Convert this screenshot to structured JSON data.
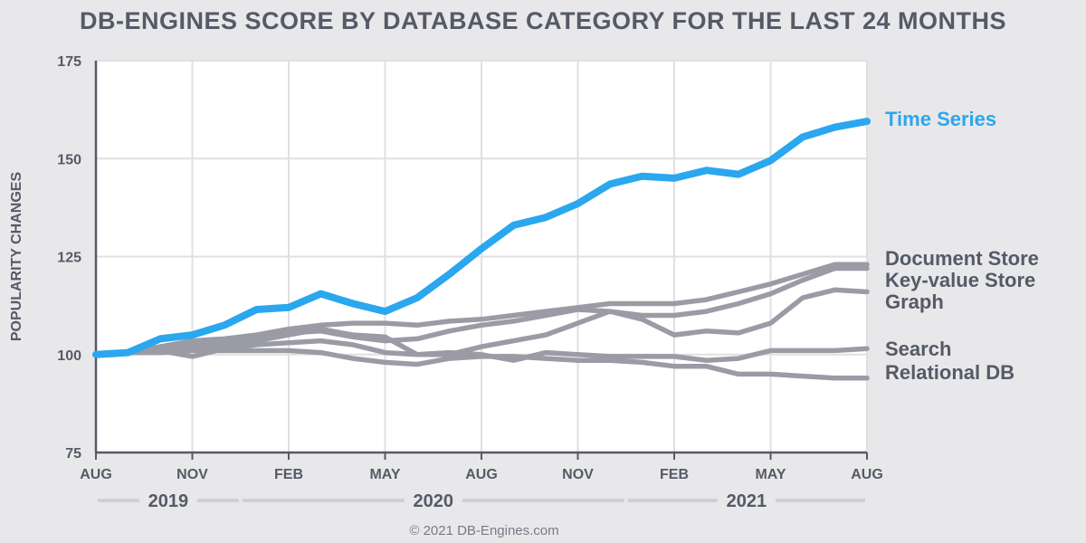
{
  "chart_data": {
    "type": "line",
    "title": "DB-ENGINES SCORE BY DATABASE CATEGORY FOR THE LAST 24 MONTHS",
    "ylabel": "POPULARITY CHANGES",
    "xlabel": "",
    "ylim": [
      75,
      175
    ],
    "yticks": [
      "75",
      "100",
      "125",
      "150",
      "175"
    ],
    "grid": true,
    "xlim": [
      0,
      24
    ],
    "xticks": [
      {
        "label": "AUG",
        "x": 0
      },
      {
        "label": "NOV",
        "x": 3
      },
      {
        "label": "FEB",
        "x": 6
      },
      {
        "label": "MAY",
        "x": 9
      },
      {
        "label": "AUG",
        "x": 12
      },
      {
        "label": "NOV",
        "x": 15
      },
      {
        "label": "FEB",
        "x": 18
      },
      {
        "label": "MAY",
        "x": 21
      },
      {
        "label": "AUG",
        "x": 24
      }
    ],
    "year_bands": [
      {
        "label": "2019",
        "start": 0,
        "end": 4.5
      },
      {
        "label": "2020",
        "start": 4.5,
        "end": 16.5
      },
      {
        "label": "2021",
        "start": 16.5,
        "end": 24
      }
    ],
    "x": [
      0,
      1,
      2,
      3,
      4,
      5,
      6,
      7,
      8,
      9,
      10,
      11,
      12,
      13,
      14,
      15,
      16,
      17,
      18,
      19,
      20,
      21,
      22,
      23,
      24
    ],
    "series": [
      {
        "name": "Document Store",
        "highlight": false,
        "values": [
          100,
          100.5,
          102,
          103.5,
          104,
          105,
          106.5,
          107.5,
          108,
          108,
          107.5,
          108.5,
          109,
          110,
          111,
          112,
          113,
          113,
          113,
          114,
          116,
          118,
          120.5,
          123,
          123
        ]
      },
      {
        "name": "Key-value Store",
        "highlight": false,
        "values": [
          100,
          100.5,
          101.5,
          102.5,
          103.5,
          104.5,
          105.5,
          106,
          104.5,
          103.5,
          104,
          106,
          107.5,
          108.5,
          110,
          111.5,
          111,
          110,
          110,
          111,
          113,
          115.5,
          119,
          122,
          122
        ]
      },
      {
        "name": "Graph",
        "highlight": false,
        "values": [
          100,
          100.5,
          101,
          101.5,
          102.5,
          103.5,
          105,
          106.5,
          105,
          104.5,
          100,
          100,
          102,
          103.5,
          105,
          108,
          111,
          109,
          105,
          106,
          105.5,
          108,
          114.5,
          116.5,
          116
        ]
      },
      {
        "name": "Search",
        "highlight": false,
        "values": [
          100,
          100.5,
          101,
          99.5,
          101.5,
          102.5,
          103,
          103.5,
          102.5,
          100.5,
          100,
          100.5,
          100,
          98.5,
          100.5,
          100,
          99.5,
          99.5,
          99.5,
          98.5,
          99,
          101,
          101,
          101,
          101.5
        ]
      },
      {
        "name": "Relational DB",
        "highlight": false,
        "values": [
          100,
          100.5,
          100.5,
          101,
          101,
          101,
          101,
          100.5,
          99,
          98,
          97.5,
          99,
          99.5,
          99.5,
          99,
          98.5,
          98.5,
          98,
          97,
          97,
          95,
          95,
          94.5,
          94,
          94
        ]
      },
      {
        "name": "Time Series",
        "highlight": true,
        "values": [
          100,
          100.5,
          104,
          105,
          107.5,
          111.5,
          112,
          115.5,
          113,
          111,
          114.5,
          120.5,
          127,
          133,
          135,
          138.5,
          143.5,
          145.5,
          145,
          147,
          146,
          149.5,
          155.5,
          158,
          159.5
        ]
      }
    ],
    "colors": {
      "highlight": "#2aa7ee",
      "muted": "#9b9ba6",
      "grid": "#e0e0e0",
      "plot_bg": "#ffffff",
      "label_muted": "#555a66",
      "tick": "#555a66",
      "band": "#cfd0d6"
    }
  },
  "footer": {
    "copyright": "© 2021 DB-Engines.com"
  }
}
